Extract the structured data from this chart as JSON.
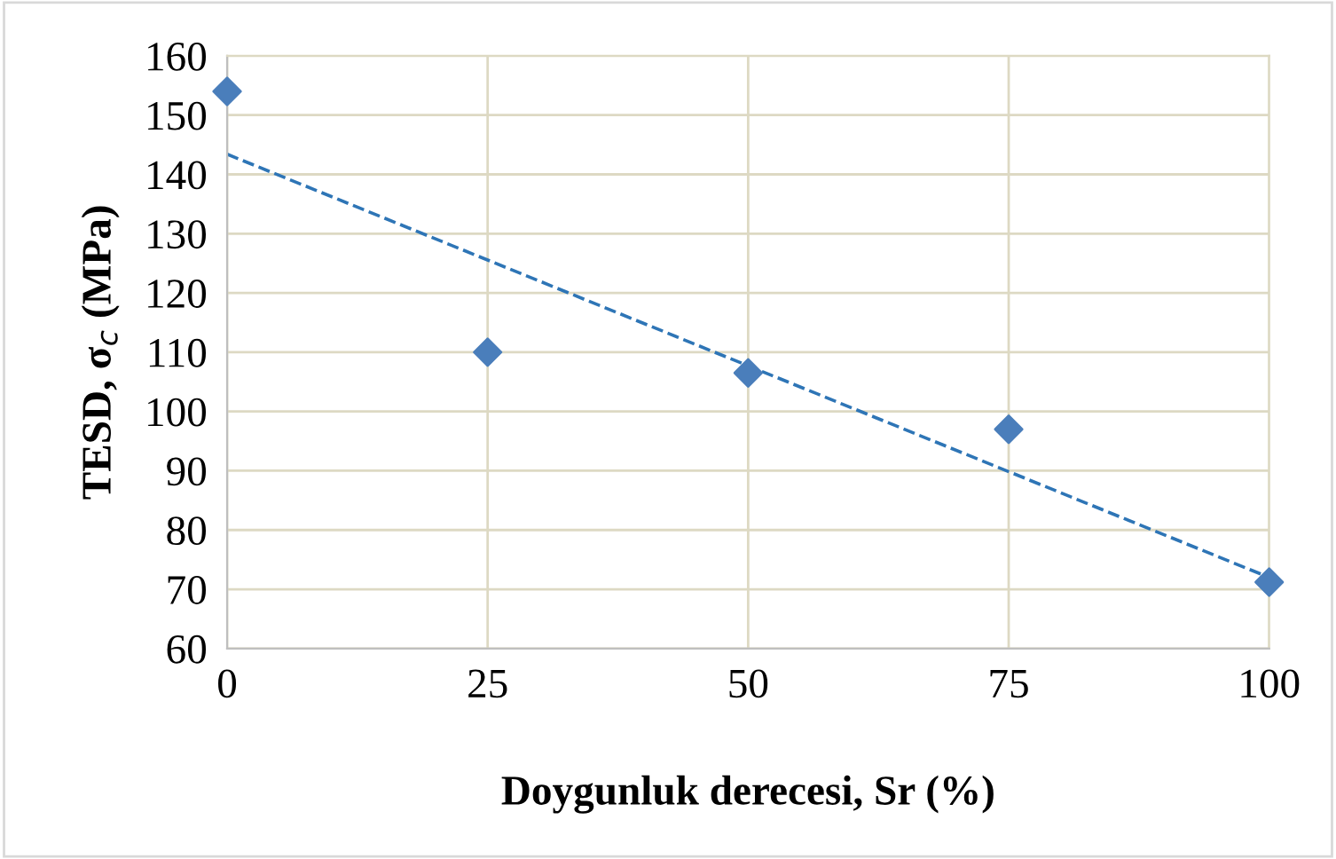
{
  "chart_data": {
    "type": "scatter",
    "xlabel": "Doygunluk derecesi, Sr (%)",
    "ylabel": "TESD, σ$_{c}$ (MPa)",
    "xlim": [
      0,
      100
    ],
    "xticks": [
      0,
      25,
      50,
      75,
      100
    ],
    "ylim": [
      60,
      160
    ],
    "yticks": [
      60,
      70,
      80,
      90,
      100,
      110,
      120,
      130,
      140,
      150,
      160
    ],
    "grid": true,
    "marker": "diamond",
    "series": [
      {
        "color": "#4a7ebb",
        "x": [
          0,
          25,
          50,
          75,
          100
        ],
        "values": [
          154,
          110,
          106.5,
          97,
          71.2
        ]
      },
      {
        "type": "line",
        "color": "#2e75b6",
        "line_style": "dashed",
        "marker": "none",
        "x": [
          0,
          100
        ],
        "values": [
          143.4,
          72.0
        ]
      }
    ]
  }
}
